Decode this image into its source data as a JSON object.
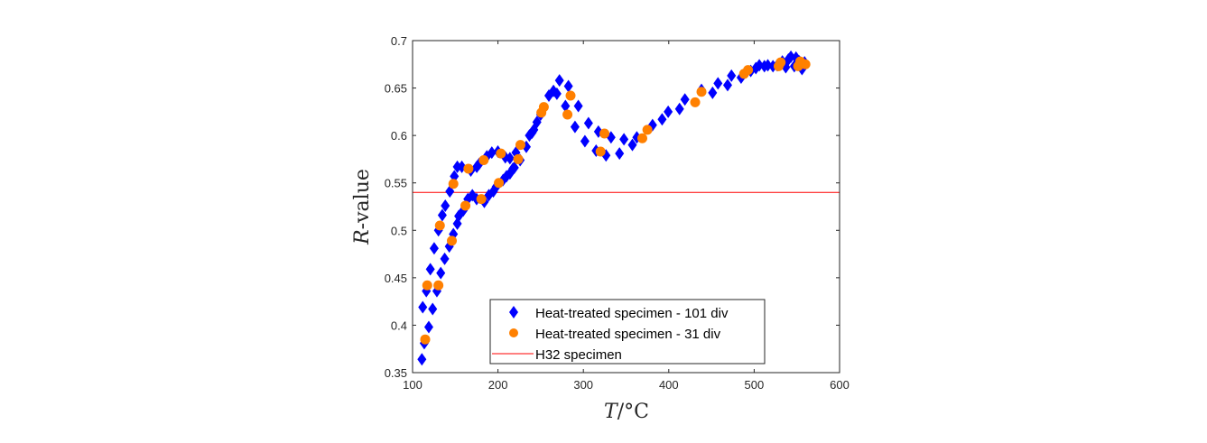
{
  "chart_data": {
    "type": "scatter",
    "title": "",
    "xlabel_italic": "T",
    "xlabel_rest": "/°C",
    "ylabel_italic": "R",
    "ylabel_rest": "-value",
    "xlim": [
      100,
      600
    ],
    "ylim": [
      0.35,
      0.7
    ],
    "xticks": [
      100,
      200,
      300,
      400,
      500,
      600
    ],
    "xtick_labels": [
      "100",
      "200",
      "300",
      "400",
      "500",
      "600"
    ],
    "yticks": [
      0.35,
      0.4,
      0.45,
      0.5,
      0.55,
      0.6,
      0.65,
      0.7
    ],
    "ytick_labels": [
      "0.35",
      "0.4",
      "0.45",
      "0.5",
      "0.55",
      "0.6",
      "0.65",
      "0.7"
    ],
    "grid": false,
    "legend_position": "bottom-center",
    "series": [
      {
        "name": "Heat-treated specimen - 101 div",
        "marker": "diamond",
        "color": "#0000ff",
        "points": [
          [
            110.9,
            0.364
          ],
          [
            113.7,
            0.381
          ],
          [
            119.0,
            0.398
          ],
          [
            111.9,
            0.419
          ],
          [
            123.5,
            0.417
          ],
          [
            116.1,
            0.436
          ],
          [
            128.5,
            0.436
          ],
          [
            120.8,
            0.459
          ],
          [
            133.0,
            0.455
          ],
          [
            125.3,
            0.481
          ],
          [
            137.6,
            0.47
          ],
          [
            143.0,
            0.483
          ],
          [
            147.8,
            0.496
          ],
          [
            130.3,
            0.5
          ],
          [
            152.4,
            0.507
          ],
          [
            134.8,
            0.516
          ],
          [
            138.3,
            0.526
          ],
          [
            143.6,
            0.541
          ],
          [
            148.9,
            0.557
          ],
          [
            152.4,
            0.567
          ],
          [
            157.7,
            0.567
          ],
          [
            168.2,
            0.563
          ],
          [
            175.2,
            0.567
          ],
          [
            178.0,
            0.57
          ],
          [
            154.0,
            0.515
          ],
          [
            159.4,
            0.521
          ],
          [
            164.7,
            0.533
          ],
          [
            170.0,
            0.537
          ],
          [
            175.0,
            0.533
          ],
          [
            184.0,
            0.53
          ],
          [
            189.3,
            0.537
          ],
          [
            194.6,
            0.541
          ],
          [
            198.0,
            0.546
          ],
          [
            206.0,
            0.553
          ],
          [
            210.0,
            0.557
          ],
          [
            214.0,
            0.56
          ],
          [
            219.2,
            0.566
          ],
          [
            217.5,
            0.565
          ],
          [
            187.0,
            0.578
          ],
          [
            192.8,
            0.582
          ],
          [
            199.9,
            0.583
          ],
          [
            208.6,
            0.577
          ],
          [
            214.0,
            0.576
          ],
          [
            221.0,
            0.582
          ],
          [
            226.0,
            0.574
          ],
          [
            233.2,
            0.588
          ],
          [
            236.8,
            0.6
          ],
          [
            240.0,
            0.603
          ],
          [
            242.0,
            0.606
          ],
          [
            245.6,
            0.614
          ],
          [
            250.0,
            0.622
          ],
          [
            259.6,
            0.642
          ],
          [
            265.0,
            0.647
          ],
          [
            269.0,
            0.644
          ],
          [
            272.0,
            0.658
          ],
          [
            282.5,
            0.652
          ],
          [
            279.0,
            0.631
          ],
          [
            294.1,
            0.631
          ],
          [
            290.2,
            0.609
          ],
          [
            306.0,
            0.613
          ],
          [
            301.8,
            0.594
          ],
          [
            317.6,
            0.604
          ],
          [
            332.4,
            0.598
          ],
          [
            314.9,
            0.584
          ],
          [
            326.5,
            0.579
          ],
          [
            342.3,
            0.581
          ],
          [
            347.5,
            0.596
          ],
          [
            357.4,
            0.59
          ],
          [
            362.6,
            0.598
          ],
          [
            381.0,
            0.611
          ],
          [
            392.2,
            0.617
          ],
          [
            399.3,
            0.625
          ],
          [
            412.6,
            0.628
          ],
          [
            418.9,
            0.638
          ],
          [
            438.3,
            0.648
          ],
          [
            451.3,
            0.645
          ],
          [
            457.6,
            0.655
          ],
          [
            468.9,
            0.653
          ],
          [
            473.4,
            0.663
          ],
          [
            484.7,
            0.661
          ],
          [
            496.0,
            0.668
          ],
          [
            502.0,
            0.671
          ],
          [
            506.0,
            0.674
          ],
          [
            512.0,
            0.673
          ],
          [
            516.0,
            0.674
          ],
          [
            522.0,
            0.673
          ],
          [
            527.0,
            0.674
          ],
          [
            533.0,
            0.678
          ],
          [
            537.0,
            0.672
          ],
          [
            540.0,
            0.68
          ],
          [
            543.0,
            0.683
          ],
          [
            547.0,
            0.673
          ],
          [
            549.0,
            0.682
          ],
          [
            553.0,
            0.678
          ],
          [
            556.0,
            0.67
          ],
          [
            559.0,
            0.677
          ]
        ]
      },
      {
        "name": "Heat-treated specimen - 31 div",
        "marker": "circle",
        "color": "#ff8000",
        "points": [
          [
            114.8,
            0.385
          ],
          [
            117.2,
            0.442
          ],
          [
            130.3,
            0.442
          ],
          [
            132.0,
            0.505
          ],
          [
            146.0,
            0.489
          ],
          [
            147.8,
            0.549
          ],
          [
            161.9,
            0.526
          ],
          [
            165.4,
            0.565
          ],
          [
            180.5,
            0.533
          ],
          [
            183.3,
            0.574
          ],
          [
            201.0,
            0.55
          ],
          [
            203.4,
            0.581
          ],
          [
            223.7,
            0.575
          ],
          [
            226.3,
            0.59
          ],
          [
            250.8,
            0.624
          ],
          [
            253.7,
            0.63
          ],
          [
            281.4,
            0.622
          ],
          [
            285.0,
            0.642
          ],
          [
            320.1,
            0.583
          ],
          [
            324.7,
            0.602
          ],
          [
            369.0,
            0.597
          ],
          [
            375.0,
            0.606
          ],
          [
            430.9,
            0.635
          ],
          [
            438.3,
            0.646
          ],
          [
            488.2,
            0.665
          ],
          [
            492.8,
            0.669
          ],
          [
            528.6,
            0.673
          ],
          [
            531.0,
            0.677
          ],
          [
            551.5,
            0.673
          ],
          [
            554.0,
            0.678
          ],
          [
            560.0,
            0.675
          ]
        ]
      },
      {
        "name": "H32 specimen",
        "marker": "line",
        "color": "#ff0000",
        "y": 0.54
      }
    ]
  }
}
